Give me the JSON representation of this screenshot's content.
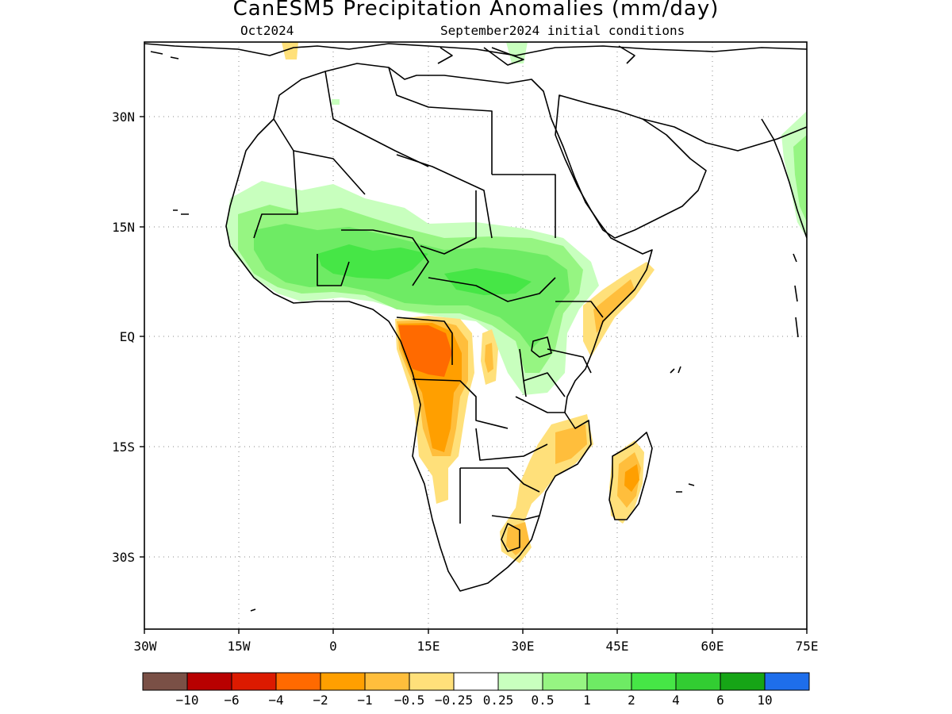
{
  "title": "CanESM5 Precipitation Anomalies (mm/day)",
  "subtitle_left": "Oct2024",
  "subtitle_right": "September2024 initial conditions",
  "lat_labels": [
    "30N",
    "15N",
    "EQ",
    "15S",
    "30S"
  ],
  "lon_labels": [
    "30W",
    "15W",
    "0",
    "15E",
    "30E",
    "45E",
    "60E",
    "75E"
  ],
  "colorbar": {
    "colors": [
      "#7a5046",
      "#b80000",
      "#dc1a00",
      "#ff6a00",
      "#ff9f00",
      "#ffbe3c",
      "#ffe07a",
      "#ffffff",
      "#c8ffbe",
      "#96f582",
      "#6eeb64",
      "#46e646",
      "#32cd32",
      "#16a516",
      "#1e6eeb"
    ],
    "labels": [
      "−10",
      "−6",
      "−4",
      "−2",
      "−1",
      "−0.5",
      "−0.25",
      "0.25",
      "0.5",
      "1",
      "2",
      "4",
      "6",
      "10"
    ]
  },
  "map_data": {
    "lon_range": [
      -30,
      75
    ],
    "lat_range": [
      -40,
      40
    ]
  }
}
